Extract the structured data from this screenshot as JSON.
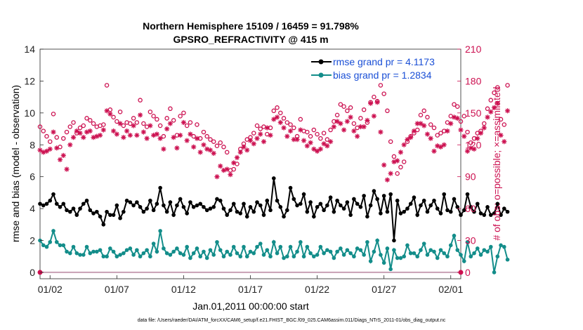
{
  "chart_data": {
    "type": "line",
    "title_line1": "Northern Hemisphere 15109 / 16459 = 91.798%",
    "title_line2": "GPSRO_REFRACTIVITY @ 415 m",
    "ylabel": "rmse and bias (model - observation)",
    "ylabel_right": "# of obs: o=possible; ×=assimilated",
    "xlabel": "Jan.01,2011 00:00:00 start",
    "footnote": "data file: /Users/raeder/DAI/ATM_forcXX/CAM6_setup/f.e21.FHIST_BGC.f09_025.CAM6assim.011/Diags_NTrS_2011-01/obs_diag_output.nc",
    "ylim": [
      -0.4,
      14
    ],
    "yticks": [
      "0",
      "2",
      "4",
      "6",
      "8",
      "10",
      "12",
      "14"
    ],
    "ylim_right": [
      -6,
      210
    ],
    "yticks_right": [
      "0",
      "30",
      "60",
      "90",
      "120",
      "150",
      "180",
      "210"
    ],
    "xlim": [
      0.25,
      31.75
    ],
    "xticks": [
      {
        "x": 1,
        "label": "01/02"
      },
      {
        "x": 6,
        "label": "01/07"
      },
      {
        "x": 11,
        "label": "01/12"
      },
      {
        "x": 16,
        "label": "01/17"
      },
      {
        "x": 21,
        "label": "01/22"
      },
      {
        "x": 26,
        "label": "01/27"
      },
      {
        "x": 31,
        "label": "02/01"
      }
    ],
    "grid": false,
    "legend": [
      {
        "label": "rmse grand pr = 4.1173",
        "color": "#000000"
      },
      {
        "label": "bias grand pr = 1.2834",
        "color": "#138d8a"
      }
    ],
    "colors": {
      "rmse": "#000000",
      "bias": "#138d8a",
      "obs": "#cc1050",
      "zero_line": "#c8a0b4"
    },
    "time_step_days": 0.25,
    "time_start_day": 0.25,
    "rmse": [
      4.3,
      4.2,
      4.3,
      4.5,
      4.9,
      4.3,
      4.1,
      4.3,
      3.9,
      3.8,
      4.0,
      3.6,
      4.0,
      4.3,
      4.5,
      3.9,
      3.7,
      3.8,
      3.5,
      3.0,
      3.8,
      3.6,
      3.6,
      4.2,
      3.4,
      3.8,
      4.5,
      4.4,
      4.2,
      4.4,
      4.1,
      3.8,
      4.0,
      4.5,
      3.9,
      4.3,
      5.3,
      4.2,
      3.8,
      4.4,
      3.6,
      4.2,
      4.6,
      4.1,
      3.7,
      4.4,
      4.1,
      4.2,
      4.3,
      4.1,
      3.9,
      4.0,
      4.1,
      4.6,
      4.5,
      4.0,
      3.6,
      3.9,
      4.3,
      3.8,
      3.7,
      4.3,
      3.5,
      4.1,
      3.8,
      4.4,
      4.2,
      3.6,
      4.5,
      3.9,
      5.9,
      4.5,
      4.1,
      3.5,
      3.9,
      5.3,
      4.6,
      4.2,
      4.3,
      4.9,
      3.8,
      4.4,
      3.5,
      4.1,
      4.3,
      3.9,
      4.2,
      4.7,
      3.8,
      4.5,
      4.2,
      4.0,
      4.4,
      3.6,
      4.6,
      4.3,
      4.1,
      4.8,
      3.5,
      4.2,
      5.1,
      4.6,
      3.7,
      4.8,
      3.8,
      4.9,
      2.0,
      4.5,
      3.7,
      3.8,
      4.0,
      4.3,
      4.7,
      3.6,
      4.2,
      4.5,
      3.8,
      4.2,
      4.5,
      4.0,
      3.7,
      4.9,
      3.9,
      3.8,
      4.6,
      4.1,
      3.6,
      3.9,
      4.9,
      4.1,
      3.8,
      4.3,
      3.7,
      3.6,
      4.1,
      3.6,
      3.7,
      4.3,
      3.6,
      4.0,
      3.8
    ],
    "bias": [
      2.0,
      1.7,
      1.6,
      1.9,
      2.6,
      1.9,
      1.7,
      1.7,
      1.3,
      1.2,
      1.6,
      1.2,
      1.1,
      1.1,
      1.6,
      1.2,
      1.3,
      1.3,
      1.4,
      1.0,
      1.0,
      1.5,
      1.3,
      1.0,
      1.1,
      1.2,
      1.4,
      1.5,
      1.1,
      1.4,
      1.0,
      1.2,
      1.4,
      1.0,
      1.8,
      1.3,
      2.6,
      1.5,
      1.2,
      1.1,
      1.3,
      1.5,
      1.2,
      1.1,
      1.6,
      0.9,
      1.2,
      1.5,
      1.0,
      1.3,
      0.9,
      1.4,
      1.1,
      1.9,
      1.4,
      1.0,
      1.3,
      1.1,
      1.6,
      1.2,
      1.0,
      1.6,
      1.0,
      1.3,
      1.2,
      1.6,
      1.8,
      1.1,
      1.4,
      1.0,
      1.9,
      1.2,
      1.6,
      0.9,
      1.0,
      1.6,
      1.0,
      1.3,
      1.9,
      1.0,
      1.6,
      1.2,
      1.0,
      1.1,
      1.6,
      1.2,
      1.4,
      1.3,
      0.9,
      1.3,
      1.5,
      1.1,
      1.4,
      1.2,
      1.0,
      1.5,
      1.4,
      1.1,
      1.9,
      0.7,
      1.3,
      2.0,
      1.1,
      0.6,
      1.5,
      0.2,
      1.4,
      0.9,
      0.9,
      1.0,
      1.7,
      1.2,
      1.2,
      1.0,
      1.4,
      1.8,
      1.1,
      1.4,
      1.3,
      0.9,
      1.4,
      1.2,
      1.0,
      1.7,
      2.3,
      1.4,
      1.1,
      0.7,
      1.9,
      1.0,
      1.2,
      1.5,
      1.1,
      1.4,
      1.3,
      1.6,
      0.0,
      1.0,
      1.7,
      1.6,
      0.8
    ],
    "obs_possible": [
      137,
      133,
      128,
      123,
      149,
      127,
      118,
      126,
      132,
      137,
      141,
      131,
      136,
      138,
      145,
      143,
      140,
      137,
      138,
      139,
      176,
      153,
      146,
      142,
      151,
      138,
      141,
      140,
      145,
      141,
      162,
      140,
      137,
      151,
      147,
      144,
      138,
      128,
      145,
      154,
      143,
      129,
      147,
      150,
      138,
      141,
      128,
      139,
      126,
      132,
      128,
      125,
      123,
      119,
      122,
      118,
      113,
      96,
      97,
      102,
      116,
      121,
      125,
      127,
      131,
      138,
      135,
      137,
      130,
      136,
      152,
      155,
      150,
      145,
      141,
      139,
      136,
      128,
      144,
      133,
      132,
      128,
      134,
      130,
      126,
      131,
      125,
      134,
      142,
      148,
      158,
      156,
      152,
      155,
      140,
      136,
      145,
      153,
      141,
      160,
      165,
      161,
      176,
      168,
      152,
      123,
      109,
      93,
      99,
      104,
      123,
      128,
      131,
      134,
      148,
      152,
      146,
      139,
      136,
      129,
      131,
      133,
      141,
      147,
      158,
      156,
      142,
      147,
      132,
      122,
      126,
      131,
      133,
      140,
      154,
      162,
      169,
      174,
      144,
      139,
      176
    ],
    "obs_assimilated": [
      115,
      113,
      114,
      116,
      132,
      117,
      106,
      110,
      97,
      120,
      127,
      133,
      131,
      127,
      132,
      133,
      127,
      128,
      129,
      134,
      152,
      149,
      133,
      130,
      140,
      127,
      133,
      129,
      138,
      129,
      148,
      132,
      126,
      138,
      129,
      130,
      126,
      116,
      135,
      140,
      127,
      117,
      129,
      141,
      124,
      130,
      118,
      126,
      113,
      120,
      116,
      115,
      112,
      90,
      100,
      96,
      97,
      92,
      103,
      108,
      113,
      118,
      115,
      124,
      121,
      126,
      130,
      123,
      136,
      129,
      144,
      146,
      141,
      136,
      128,
      133,
      125,
      125,
      134,
      124,
      119,
      122,
      116,
      114,
      116,
      121,
      119,
      123,
      137,
      142,
      140,
      134,
      142,
      146,
      133,
      128,
      137,
      137,
      143,
      159,
      147,
      160,
      132,
      101,
      87,
      93,
      104,
      105,
      113,
      120,
      125,
      127,
      133,
      140,
      140,
      138,
      130,
      126,
      114,
      119,
      118,
      120,
      133,
      140,
      146,
      145,
      134,
      128,
      114,
      117,
      116,
      126,
      131,
      136,
      146,
      151,
      155,
      159,
      129,
      123,
      152
    ]
  }
}
